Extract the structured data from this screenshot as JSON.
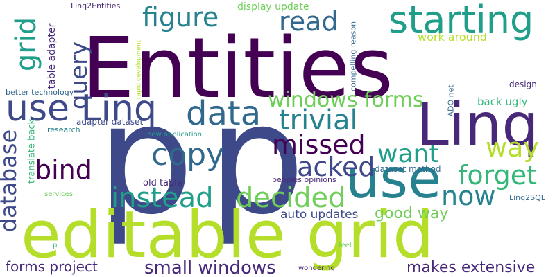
{
  "colors": {
    "background": "#ffffff",
    "palette": [
      "#440154",
      "#482878",
      "#3e4989",
      "#31688e",
      "#26828e",
      "#1f9e89",
      "#35b779",
      "#6ece58",
      "#b5de2b",
      "#fde725"
    ]
  },
  "words": {
    "entities": "Entities",
    "p1": "p",
    "p2": "p",
    "editable_grid": "editable grid",
    "linq_big": "Linq",
    "use_big": "use",
    "starting": "starting",
    "use_linq": "use Linq",
    "data": "data",
    "figure": "figure",
    "read": "read",
    "grid": "grid",
    "query": "query",
    "database": "database",
    "windows_forms": "windows forms",
    "trivial": "trivial",
    "missed": "missed",
    "copy": "copy",
    "bind": "bind",
    "hacked": "hacked",
    "want": "want",
    "way": "way",
    "forget": "forget",
    "instead": "instead",
    "decided": "decided",
    "now": "now",
    "good_way": "good way",
    "auto_updates": "auto updates",
    "small_windows": "small windows",
    "makes_extensive": "makes extensive",
    "forms_project": "forms project",
    "work_around": "work around",
    "display_update": "display update",
    "linq2entities": "Linq2Entities",
    "table_adapter": "table adapter",
    "rapid_development": "rapid development",
    "compelling_reason": "compelling reason",
    "better_technology": "better technology",
    "translate_back": "translate back",
    "research": "research",
    "adapter_dataset": "adapter dataset",
    "new_application": "new application",
    "back_ugly": "back ugly",
    "design": "design",
    "ado_net": "ADO net",
    "dataset_method": "dataset method",
    "old_table": "old table",
    "peoples_opinions": "peoples opinions",
    "linq2sql": "Linq2SQL",
    "services": "services",
    "feel": "feel",
    "wondering": "wondering",
    "p_small": "p"
  }
}
